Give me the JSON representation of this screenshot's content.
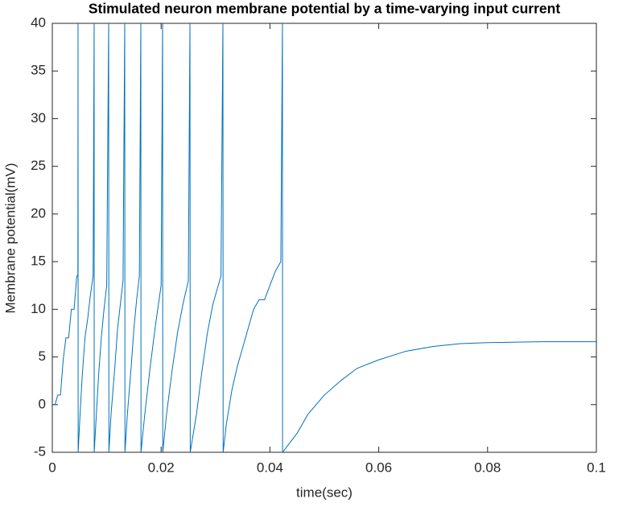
{
  "chart_data": {
    "type": "line",
    "title": "Stimulated neuron membrane potential by a time-varying input current",
    "x_label": "time(sec)",
    "y_label": "Membrane potential(mV)",
    "color": "#0072bd",
    "grid": false,
    "xlim": [
      0,
      0.1
    ],
    "xticks": [
      0,
      0.02,
      0.04,
      0.06,
      0.08,
      0.1
    ],
    "ylim": [
      -5,
      40
    ],
    "yticks": [
      -5,
      0,
      5,
      10,
      15,
      20,
      25,
      30,
      35,
      40
    ],
    "x": [
      0,
      0.0005,
      0.001,
      0.0015,
      0.002,
      0.0025,
      0.003,
      0.0035,
      0.004,
      0.0045,
      0.0047,
      0.00473,
      0.00475,
      0.0051,
      0.0055,
      0.006,
      0.0065,
      0.007,
      0.0075,
      0.00769,
      0.0077,
      0.0081,
      0.0085,
      0.009,
      0.0095,
      0.01,
      0.01036,
      0.0104,
      0.0108,
      0.0115,
      0.012,
      0.0125,
      0.013,
      0.01331,
      0.01335,
      0.0138,
      0.0145,
      0.015,
      0.0155,
      0.016,
      0.01627,
      0.0163,
      0.017,
      0.018,
      0.019,
      0.02,
      0.02027,
      0.0203,
      0.021,
      0.022,
      0.023,
      0.024,
      0.025,
      0.0253,
      0.02535,
      0.0265,
      0.0275,
      0.0285,
      0.0295,
      0.0305,
      0.031,
      0.03136,
      0.0314,
      0.032,
      0.033,
      0.034,
      0.035,
      0.036,
      0.037,
      0.038,
      0.039,
      0.04,
      0.041,
      0.042,
      0.0423,
      0.04232,
      0.043,
      0.045,
      0.047,
      0.05,
      0.053,
      0.056,
      0.06,
      0.065,
      0.07,
      0.075,
      0.08,
      0.09,
      0.1
    ],
    "values": [
      0,
      0,
      1,
      1,
      4.7,
      7,
      7,
      10,
      10,
      13.5,
      13.5,
      40,
      -5,
      -1,
      3,
      7,
      9,
      11.5,
      13.5,
      40,
      -5,
      -1,
      3,
      7,
      10,
      12.5,
      40,
      -5,
      -1,
      4,
      8,
      10.5,
      13,
      40,
      -5,
      -1,
      4,
      8,
      11,
      13.5,
      40,
      -5,
      -1,
      4,
      8.5,
      12.5,
      40,
      -5,
      -1,
      3.5,
      7.5,
      10.5,
      13,
      40,
      -5,
      -1,
      3.5,
      7.5,
      10.5,
      12.5,
      13.5,
      40,
      -5,
      -2,
      1.5,
      4,
      6,
      8,
      10,
      11,
      11,
      12.5,
      14,
      15,
      40,
      -5,
      -4.5,
      -3,
      -1,
      1,
      2.5,
      3.8,
      4.7,
      5.6,
      6.1,
      6.4,
      6.5,
      6.6,
      6.6
    ]
  }
}
